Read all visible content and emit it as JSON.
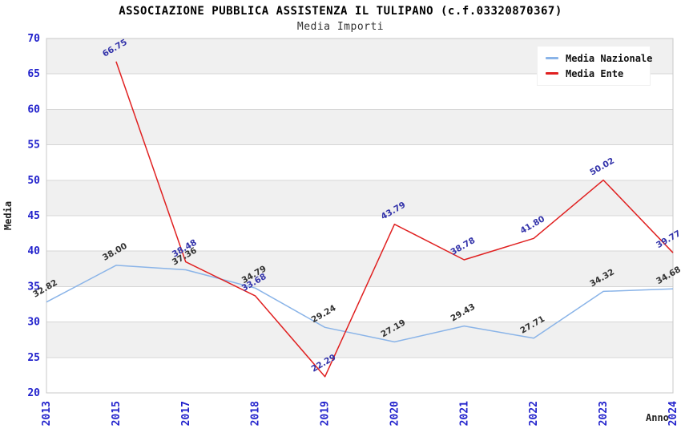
{
  "title": "ASSOCIAZIONE PUBBLICA ASSISTENZA IL TULIPANO (c.f.03320870367)",
  "subtitle": "Media Importi",
  "chart_data": {
    "type": "line",
    "x": [
      "2013",
      "2015",
      "2017",
      "2018",
      "2019",
      "2020",
      "2021",
      "2022",
      "2023",
      "2024"
    ],
    "xlabel": "Anno",
    "ylabel": "Media",
    "ylim": [
      20,
      70
    ],
    "ytick_step": 5,
    "yticks": [
      20,
      25,
      30,
      35,
      40,
      45,
      50,
      55,
      60,
      65,
      70
    ],
    "grid": "horizontal gridlines with alternating gray bands",
    "legend_position": "top-right-inside",
    "tick_label_color": "#2222cc",
    "band_color": "#f0f0f0",
    "gridline_color": "#d6d6d6",
    "plot_border_color": "#c8c8c8",
    "series": [
      {
        "name": "Media Nazionale",
        "color": "#8ab4e8",
        "label_color": "#333333",
        "values": [
          32.82,
          38.0,
          37.36,
          34.79,
          29.24,
          27.19,
          29.43,
          27.71,
          34.32,
          34.68
        ]
      },
      {
        "name": "Media Ente",
        "color": "#e02020",
        "label_color": "#3333aa",
        "values": [
          null,
          66.75,
          38.48,
          33.68,
          22.29,
          43.79,
          38.78,
          41.8,
          50.02,
          39.77
        ]
      }
    ]
  }
}
